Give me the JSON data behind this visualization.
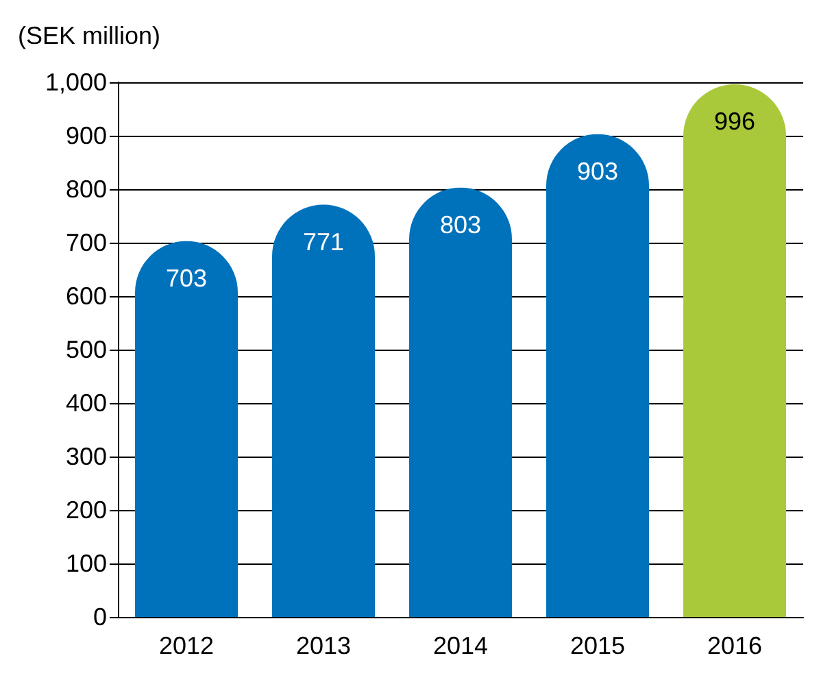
{
  "chart_data": {
    "type": "bar",
    "ylabel": "(SEK million)",
    "categories": [
      "2012",
      "2013",
      "2014",
      "2015",
      "2016"
    ],
    "values": [
      703,
      771,
      803,
      903,
      996
    ],
    "colors": [
      "#0072bc",
      "#0072bc",
      "#0072bc",
      "#0072bc",
      "#a9c93b"
    ],
    "ylim": [
      0,
      1000
    ],
    "yticks": [
      0,
      100,
      200,
      300,
      400,
      500,
      600,
      700,
      800,
      900,
      {
        "value": 1000,
        "label": "1,000"
      }
    ],
    "grid": "y",
    "data_labels": true
  }
}
